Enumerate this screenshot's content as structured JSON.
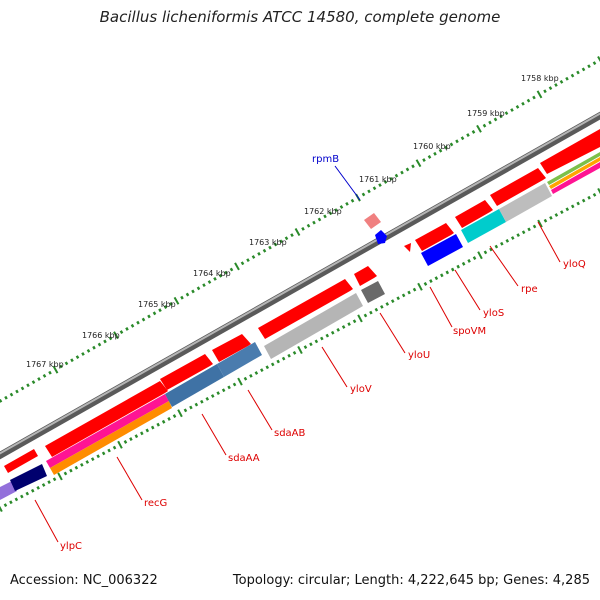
{
  "title": "Bacillus licheniformis ATCC 14580, complete genome",
  "accession": "Accession: NC_006322",
  "topology_info": "Topology: circular; Length: 4,222,645 bp; Genes: 4,285",
  "colors": {
    "cds_forward": "#ff0000",
    "tick_major": "#1e7e1e",
    "tick_minor": "#2e8b2e",
    "backbone": "#808080",
    "gene_label": "#dd0000",
    "rna_label": "#0000cc"
  },
  "kbp_labels": [
    "1758 kbp",
    "1759 kbp",
    "1760 kbp",
    "1761 kbp",
    "1762 kbp",
    "1763 kbp",
    "1764 kbp",
    "1765 kbp",
    "1766 kbp",
    "1767 kbp"
  ],
  "genes": [
    {
      "name": "yloQ",
      "color": "#cc0000"
    },
    {
      "name": "rpe",
      "color": "#cc0000"
    },
    {
      "name": "yloS",
      "color": "#cc0000"
    },
    {
      "name": "spoVM",
      "color": "#cc0000"
    },
    {
      "name": "yloU",
      "color": "#cc0000"
    },
    {
      "name": "yloV",
      "color": "#cc0000"
    },
    {
      "name": "sdaAB",
      "color": "#cc0000"
    },
    {
      "name": "sdaAA",
      "color": "#cc0000"
    },
    {
      "name": "recG",
      "color": "#cc0000"
    },
    {
      "name": "ylpC",
      "color": "#cc0000"
    },
    {
      "name": "rpmB",
      "color": "#0000cc"
    }
  ]
}
